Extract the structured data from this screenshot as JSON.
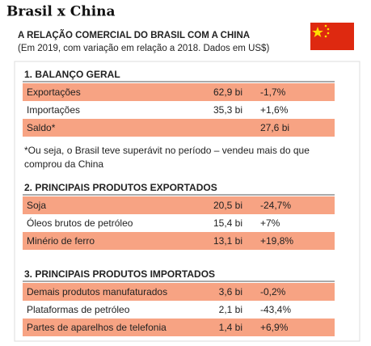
{
  "header": {
    "title": "Brasil x China",
    "subtitle": "A RELAÇÃO COMERCIAL DO BRASIL COM A CHINA",
    "note": "(Em 2019, com variação em relação a 2018. Dados em US$)"
  },
  "sections": [
    {
      "title": "1. BALANÇO GERAL",
      "rows": [
        {
          "label": "Exportações",
          "value": "62,9 bi",
          "change": "-1,7%"
        },
        {
          "label": "Importações",
          "value": "35,3 bi",
          "change": "+1,6%"
        },
        {
          "label": "Saldo*",
          "value": "27,6 bi"
        }
      ],
      "footnote": [
        "*Ou seja, o Brasil teve superávit no período – vendeu mais do que",
        "comprou da China"
      ]
    },
    {
      "title": "2. PRINCIPAIS PRODUTOS EXPORTADOS",
      "rows": [
        {
          "label": "Soja",
          "value": "20,5 bi",
          "change": "-24,7%"
        },
        {
          "label": "Óleos brutos de petróleo",
          "value": "15,4 bi",
          "change": "+7%"
        },
        {
          "label": "Minério de ferro",
          "value": "13,1 bi",
          "change": "+19,8%"
        }
      ]
    },
    {
      "title": "3. PRINCIPAIS PRODUTOS IMPORTADOS",
      "rows": [
        {
          "label": "Demais produtos manufaturados",
          "value": "3,6 bi",
          "change": "-0,2%"
        },
        {
          "label": "Plataformas de petróleo",
          "value": "2,1 bi",
          "change": "-43,4%"
        },
        {
          "label": "Partes de aparelhos de telefonia",
          "value": "1,4 bi",
          "change": "+6,9%"
        }
      ]
    }
  ]
}
